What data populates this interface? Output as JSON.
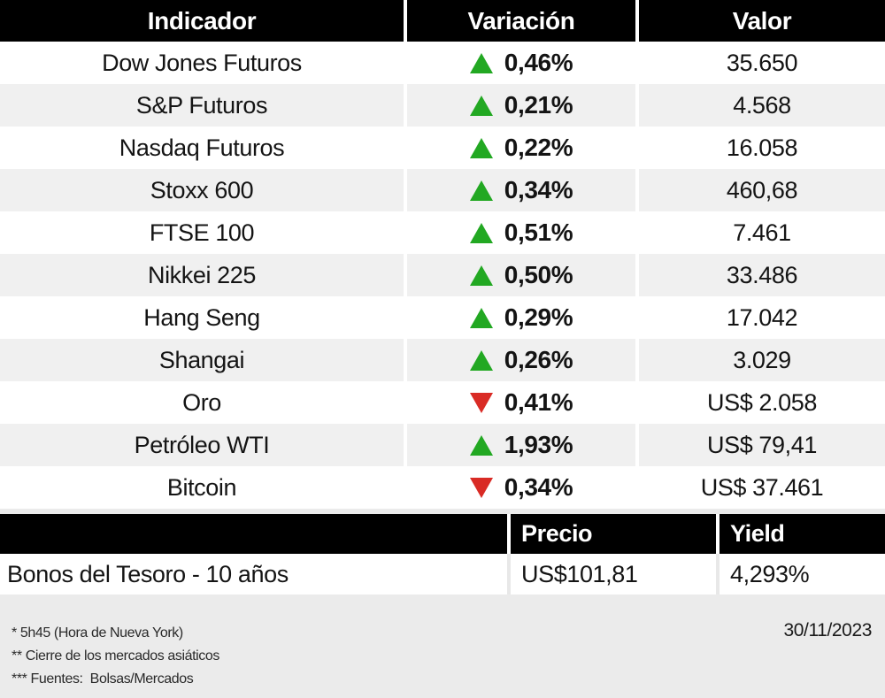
{
  "colors": {
    "up_green": "#22a822",
    "down_red": "#d92b25",
    "header_bg": "#000000",
    "alt_row_bg": "#f0f0f0",
    "page_bg": "#ebebeb"
  },
  "table1": {
    "headers": {
      "indicator": "Indicador",
      "variation": "Variación",
      "value": "Valor"
    },
    "rows": [
      {
        "indicator": "Dow Jones Futuros",
        "direction": "up",
        "variation": "0,46%",
        "value": "35.650"
      },
      {
        "indicator": "S&P Futuros",
        "direction": "up",
        "variation": "0,21%",
        "value": "4.568"
      },
      {
        "indicator": "Nasdaq Futuros",
        "direction": "up",
        "variation": "0,22%",
        "value": "16.058"
      },
      {
        "indicator": "Stoxx 600",
        "direction": "up",
        "variation": "0,34%",
        "value": "460,68"
      },
      {
        "indicator": "FTSE 100",
        "direction": "up",
        "variation": "0,51%",
        "value": "7.461"
      },
      {
        "indicator": "Nikkei 225",
        "direction": "up",
        "variation": "0,50%",
        "value": "33.486"
      },
      {
        "indicator": "Hang Seng",
        "direction": "up",
        "variation": "0,29%",
        "value": "17.042"
      },
      {
        "indicator": "Shangai",
        "direction": "up",
        "variation": "0,26%",
        "value": "3.029"
      },
      {
        "indicator": "Oro",
        "direction": "down",
        "variation": "0,41%",
        "value": "US$ 2.058"
      },
      {
        "indicator": "Petróleo WTI",
        "direction": "up",
        "variation": "1,93%",
        "value": "US$ 79,41"
      },
      {
        "indicator": "Bitcoin",
        "direction": "down",
        "variation": "0,34%",
        "value": "US$ 37.461"
      }
    ]
  },
  "table2": {
    "headers": {
      "empty": "",
      "price": "Precio",
      "yield": "Yield"
    },
    "rows": [
      {
        "name": "Bonos del Tesoro - 10 años",
        "price": "US$101,81",
        "yield": "4,293%"
      }
    ]
  },
  "footer": {
    "notes": [
      "* 5h45 (Hora de Nueva York)",
      "** Cierre de los mercados asiáticos",
      "*** Fuentes:  Bolsas/Mercados"
    ],
    "date": "30/11/2023"
  },
  "chart_data": [
    {
      "type": "table",
      "title": "Indicadores de mercado",
      "columns": [
        "Indicador",
        "Variación",
        "Valor"
      ],
      "rows": [
        [
          "Dow Jones Futuros",
          "▲ 0,46%",
          "35.650"
        ],
        [
          "S&P Futuros",
          "▲ 0,21%",
          "4.568"
        ],
        [
          "Nasdaq Futuros",
          "▲ 0,22%",
          "16.058"
        ],
        [
          "Stoxx 600",
          "▲ 0,34%",
          "460,68"
        ],
        [
          "FTSE 100",
          "▲ 0,51%",
          "7.461"
        ],
        [
          "Nikkei 225",
          "▲ 0,50%",
          "33.486"
        ],
        [
          "Hang Seng",
          "▲ 0,29%",
          "17.042"
        ],
        [
          "Shangai",
          "▲ 0,26%",
          "3.029"
        ],
        [
          "Oro",
          "▼ 0,41%",
          "US$ 2.058"
        ],
        [
          "Petróleo WTI",
          "▲ 1,93%",
          "US$ 79,41"
        ],
        [
          "Bitcoin",
          "▼ 0,34%",
          "US$ 37.461"
        ]
      ]
    },
    {
      "type": "table",
      "title": "Bonos",
      "columns": [
        "",
        "Precio",
        "Yield"
      ],
      "rows": [
        [
          "Bonos del Tesoro - 10 años",
          "US$101,81",
          "4,293%"
        ]
      ]
    }
  ]
}
